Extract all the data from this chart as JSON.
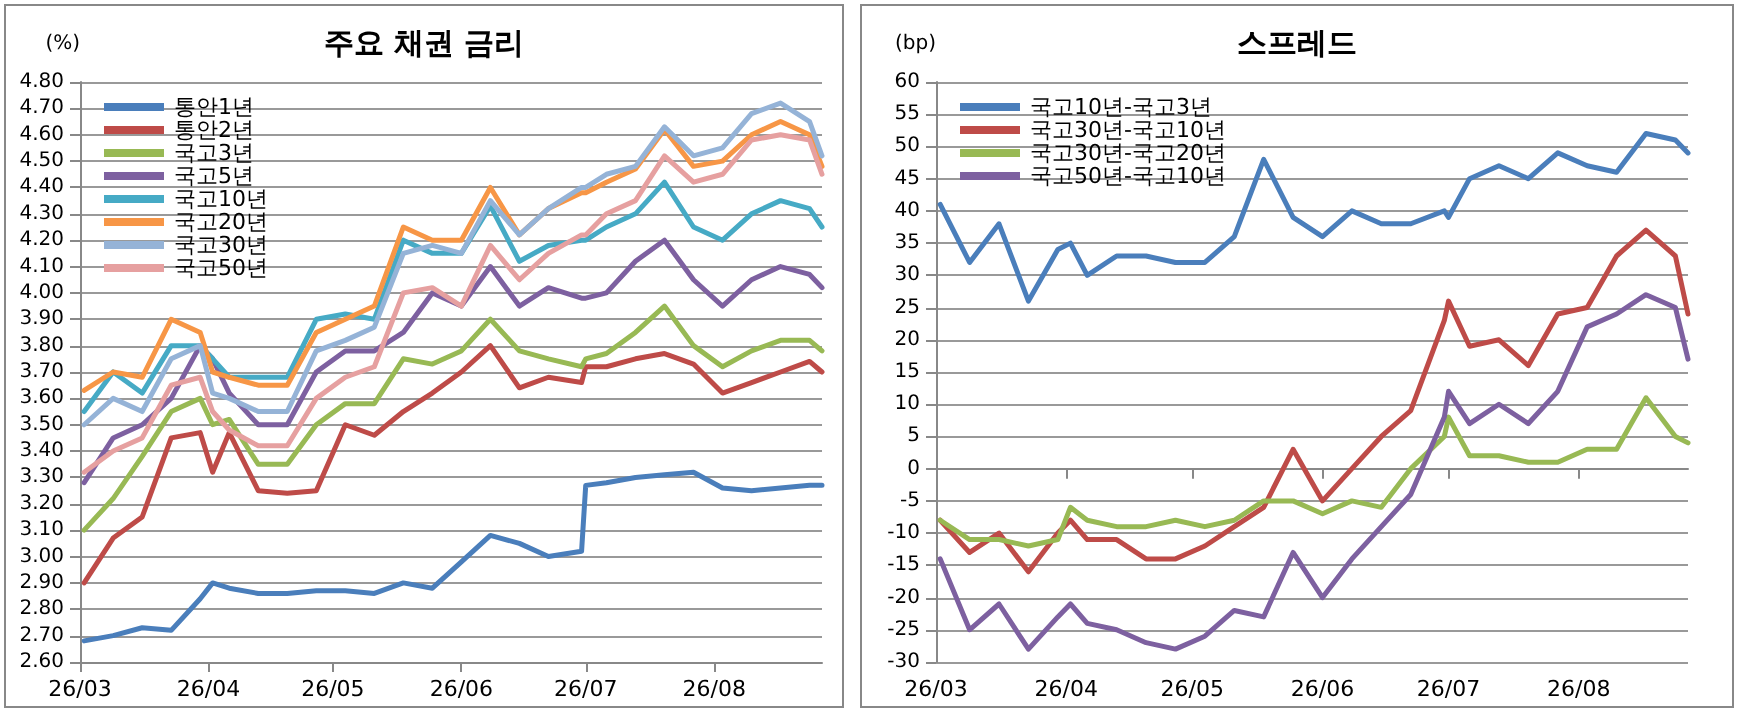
{
  "chart_data": [
    {
      "type": "line",
      "title": "주요 채권 금리",
      "ylabel": "(%)",
      "legend": "top left",
      "grid": "y",
      "marker": "none",
      "line_style": "solid",
      "x": [
        "--03-02",
        "--03-09",
        "--03-16",
        "--03-23",
        "--03-30",
        "--04-02",
        "--04-06",
        "--04-13",
        "--04-20",
        "--04-27",
        "--05-04",
        "--05-11",
        "--05-18",
        "--05-25",
        "--06-01",
        "--06-08",
        "--06-15",
        "--06-22",
        "--06-30",
        "--07-01",
        "--07-06",
        "--07-13",
        "--07-20",
        "--07-27",
        "--08-03",
        "--08-10",
        "--08-17",
        "--08-24",
        "--08-27"
      ],
      "xlim": [
        "--03-01",
        "--08-27"
      ],
      "xticks": [
        {
          "value": "--03-01",
          "label": "26/03"
        },
        {
          "value": "--04-01",
          "label": "26/04"
        },
        {
          "value": "--05-01",
          "label": "26/05"
        },
        {
          "value": "--06-01",
          "label": "26/06"
        },
        {
          "value": "--07-01",
          "label": "26/07"
        },
        {
          "value": "--08-01",
          "label": "26/08"
        }
      ],
      "ylim": [
        2.6,
        4.8
      ],
      "yticks": [
        {
          "value": 2.6,
          "label": "2.60"
        },
        {
          "value": 2.7,
          "label": "2.70"
        },
        {
          "value": 2.8,
          "label": "2.80"
        },
        {
          "value": 2.9,
          "label": "2.90"
        },
        {
          "value": 3.0,
          "label": "3.00"
        },
        {
          "value": 3.1,
          "label": "3.10"
        },
        {
          "value": 3.2,
          "label": "3.20"
        },
        {
          "value": 3.3,
          "label": "3.30"
        },
        {
          "value": 3.4,
          "label": "3.40"
        },
        {
          "value": 3.5,
          "label": "3.50"
        },
        {
          "value": 3.6,
          "label": "3.60"
        },
        {
          "value": 3.7,
          "label": "3.70"
        },
        {
          "value": 3.8,
          "label": "3.80"
        },
        {
          "value": 3.9,
          "label": "3.90"
        },
        {
          "value": 4.0,
          "label": "4.00"
        },
        {
          "value": 4.1,
          "label": "4.10"
        },
        {
          "value": 4.2,
          "label": "4.20"
        },
        {
          "value": 4.3,
          "label": "4.30"
        },
        {
          "value": 4.4,
          "label": "4.40"
        },
        {
          "value": 4.5,
          "label": "4.50"
        },
        {
          "value": 4.6,
          "label": "4.60"
        },
        {
          "value": 4.7,
          "label": "4.70"
        },
        {
          "value": 4.8,
          "label": "4.80"
        }
      ],
      "series": [
        {
          "name": "통안1년",
          "color": "#4a7ebb",
          "values": [
            2.68,
            2.7,
            2.73,
            2.72,
            2.84,
            2.9,
            2.88,
            2.86,
            2.86,
            2.87,
            2.87,
            2.86,
            2.9,
            2.88,
            2.98,
            3.08,
            3.05,
            3.0,
            3.02,
            3.27,
            3.28,
            3.3,
            3.31,
            3.32,
            3.26,
            3.25,
            3.26,
            3.27,
            3.27
          ]
        },
        {
          "name": "통안2년",
          "color": "#be4b48",
          "values": [
            2.9,
            3.07,
            3.15,
            3.45,
            3.47,
            3.32,
            3.47,
            3.25,
            3.24,
            3.25,
            3.5,
            3.46,
            3.55,
            3.62,
            3.7,
            3.8,
            3.64,
            3.68,
            3.66,
            3.72,
            3.72,
            3.75,
            3.77,
            3.73,
            3.62,
            3.66,
            3.7,
            3.74,
            3.7
          ]
        },
        {
          "name": "국고3년",
          "color": "#98b954",
          "values": [
            3.1,
            3.22,
            3.38,
            3.55,
            3.6,
            3.5,
            3.52,
            3.35,
            3.35,
            3.5,
            3.58,
            3.58,
            3.75,
            3.73,
            3.78,
            3.9,
            3.78,
            3.75,
            3.72,
            3.75,
            3.77,
            3.85,
            3.95,
            3.8,
            3.72,
            3.78,
            3.82,
            3.82,
            3.78
          ]
        },
        {
          "name": "국고5년",
          "color": "#7d60a0",
          "values": [
            3.28,
            3.45,
            3.5,
            3.6,
            3.8,
            3.75,
            3.62,
            3.5,
            3.5,
            3.7,
            3.78,
            3.78,
            3.85,
            4.0,
            3.95,
            4.1,
            3.95,
            4.02,
            3.98,
            3.98,
            4.0,
            4.12,
            4.2,
            4.05,
            3.95,
            4.05,
            4.1,
            4.07,
            4.02
          ]
        },
        {
          "name": "국고10년",
          "color": "#46aac5",
          "values": [
            3.55,
            3.7,
            3.62,
            3.8,
            3.8,
            3.75,
            3.68,
            3.68,
            3.68,
            3.9,
            3.92,
            3.9,
            4.2,
            4.15,
            4.15,
            4.33,
            4.12,
            4.18,
            4.2,
            4.2,
            4.25,
            4.3,
            4.42,
            4.25,
            4.2,
            4.3,
            4.35,
            4.32,
            4.25
          ]
        },
        {
          "name": "국고20년",
          "color": "#f79646",
          "values": [
            3.63,
            3.7,
            3.68,
            3.9,
            3.85,
            3.7,
            3.68,
            3.65,
            3.65,
            3.85,
            3.9,
            3.95,
            4.25,
            4.2,
            4.2,
            4.4,
            4.22,
            4.32,
            4.38,
            4.38,
            4.42,
            4.47,
            4.62,
            4.48,
            4.5,
            4.6,
            4.65,
            4.6,
            4.48
          ]
        },
        {
          "name": "국고30년",
          "color": "#95b3d7",
          "values": [
            3.5,
            3.6,
            3.55,
            3.75,
            3.8,
            3.62,
            3.6,
            3.55,
            3.55,
            3.78,
            3.82,
            3.87,
            4.15,
            4.18,
            4.15,
            4.35,
            4.22,
            4.32,
            4.4,
            4.4,
            4.45,
            4.48,
            4.63,
            4.52,
            4.55,
            4.68,
            4.72,
            4.65,
            4.52
          ]
        },
        {
          "name": "국고50년",
          "color": "#e6a0a0",
          "values": [
            3.32,
            3.4,
            3.45,
            3.65,
            3.68,
            3.55,
            3.48,
            3.42,
            3.42,
            3.6,
            3.68,
            3.72,
            4.0,
            4.02,
            3.95,
            4.18,
            4.05,
            4.15,
            4.22,
            4.22,
            4.3,
            4.35,
            4.52,
            4.42,
            4.45,
            4.58,
            4.6,
            4.58,
            4.45
          ]
        }
      ]
    },
    {
      "type": "line",
      "title": "스프레드",
      "ylabel": "(bp)",
      "legend": "top left",
      "grid": "y",
      "marker": "none",
      "line_style": "solid",
      "x": [
        "--03-02",
        "--03-09",
        "--03-16",
        "--03-23",
        "--03-30",
        "--04-02",
        "--04-06",
        "--04-13",
        "--04-20",
        "--04-27",
        "--05-04",
        "--05-11",
        "--05-18",
        "--05-25",
        "--06-01",
        "--06-08",
        "--06-15",
        "--06-22",
        "--06-30",
        "--07-01",
        "--07-06",
        "--07-13",
        "--07-20",
        "--07-27",
        "--08-03",
        "--08-10",
        "--08-17",
        "--08-24",
        "--08-27"
      ],
      "xlim": [
        "--03-01",
        "--08-27"
      ],
      "xticks": [
        {
          "value": "--03-01",
          "label": "26/03"
        },
        {
          "value": "--04-01",
          "label": "26/04"
        },
        {
          "value": "--05-01",
          "label": "26/05"
        },
        {
          "value": "--06-01",
          "label": "26/06"
        },
        {
          "value": "--07-01",
          "label": "26/07"
        },
        {
          "value": "--08-01",
          "label": "26/08"
        }
      ],
      "ylim": [
        -30,
        60
      ],
      "yticks": [
        -30,
        -25,
        -20,
        -15,
        -10,
        -5,
        0,
        5,
        10,
        15,
        20,
        25,
        30,
        35,
        40,
        45,
        50,
        55,
        60
      ],
      "series": [
        {
          "name": "국고10년-국고3년",
          "color": "#4a7ebb",
          "values": [
            41,
            32,
            38,
            26,
            34,
            35,
            30,
            33,
            33,
            32,
            32,
            36,
            48,
            39,
            36,
            40,
            38,
            38,
            40,
            39,
            45,
            47,
            45,
            49,
            47,
            46,
            52,
            51,
            49
          ]
        },
        {
          "name": "국고30년-국고10년",
          "color": "#be4b48",
          "values": [
            -8,
            -13,
            -10,
            -16,
            -10,
            -8,
            -11,
            -11,
            -14,
            -14,
            -12,
            -9,
            -6,
            3,
            -5,
            0,
            5,
            9,
            23,
            26,
            19,
            20,
            16,
            24,
            25,
            33,
            37,
            33,
            24
          ]
        },
        {
          "name": "국고30년-국고20년",
          "color": "#98b954",
          "values": [
            -8,
            -11,
            -11,
            -12,
            -11,
            -6,
            -8,
            -9,
            -9,
            -8,
            -9,
            -8,
            -5,
            -5,
            -7,
            -5,
            -6,
            0,
            5,
            8,
            2,
            2,
            1,
            1,
            3,
            3,
            11,
            5,
            4
          ]
        },
        {
          "name": "국고50년-국고10년",
          "color": "#7d60a0",
          "values": [
            -14,
            -25,
            -21,
            -28,
            -23,
            -21,
            -24,
            -25,
            -27,
            -28,
            -26,
            -22,
            -23,
            -13,
            -20,
            -14,
            -9,
            -4,
            8,
            12,
            7,
            10,
            7,
            12,
            22,
            24,
            27,
            25,
            17
          ]
        }
      ]
    }
  ]
}
